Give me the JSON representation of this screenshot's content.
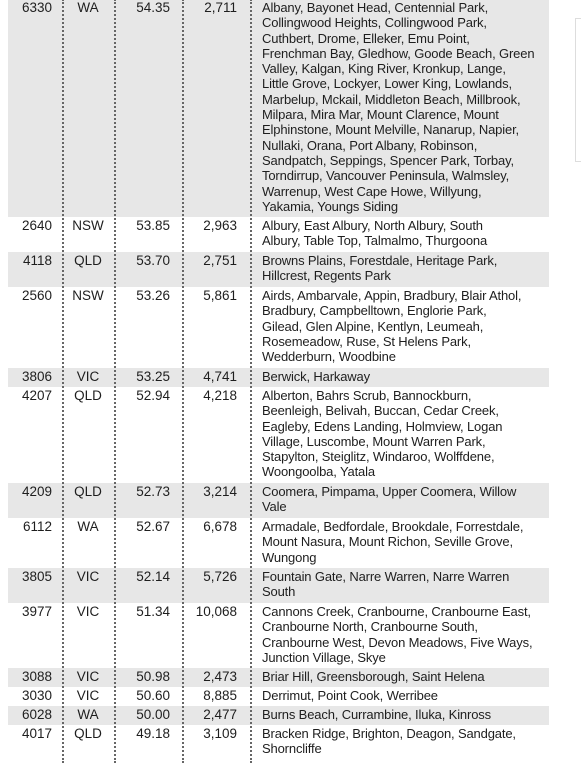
{
  "table": {
    "rows": [
      {
        "postcode": "6330",
        "state": "WA",
        "value": "54.35",
        "population": "2,711",
        "suburbs": [
          "Albany, Bayonet Head, Centennial Park,",
          "Collingwood Heights, Collingwood Park,",
          "Cuthbert, Drome, Elleker, Emu Point,",
          "Frenchman Bay, Gledhow, Goode Beach, Green",
          "Valley, Kalgan, King River, Kronkup, Lange,",
          "Little Grove, Lockyer, Lower King, Lowlands,",
          "Marbelup, Mckail, Middleton Beach, Millbrook,",
          "Milpara, Mira Mar, Mount Clarence, Mount",
          "Elphinstone, Mount Melville, Nanarup, Napier,",
          "Nullaki, Orana, Port Albany, Robinson,",
          "Sandpatch, Seppings, Spencer Park, Torbay,",
          "Torndirrup, Vancouver Peninsula, Walmsley,",
          "Warrenup, West Cape Howe, Willyung,",
          "Yakamia, Youngs Siding"
        ]
      },
      {
        "postcode": "2640",
        "state": "NSW",
        "value": "53.85",
        "population": "2,963",
        "suburbs": [
          "Albury, East Albury, North Albury, South",
          "Albury, Table Top, Talmalmo, Thurgoona"
        ]
      },
      {
        "postcode": "4118",
        "state": "QLD",
        "value": "53.70",
        "population": "2,751",
        "suburbs": [
          "Browns Plains, Forestdale, Heritage Park,",
          "Hillcrest, Regents Park"
        ]
      },
      {
        "postcode": "2560",
        "state": "NSW",
        "value": "53.26",
        "population": "5,861",
        "suburbs": [
          "Airds, Ambarvale, Appin, Bradbury, Blair Athol,",
          "Bradbury, Campbelltown, Englorie Park,",
          "Gilead, Glen Alpine, Kentlyn, Leumeah,",
          "Rosemeadow, Ruse, St Helens Park,",
          "Wedderburn, Woodbine"
        ]
      },
      {
        "postcode": "3806",
        "state": "VIC",
        "value": "53.25",
        "population": "4,741",
        "suburbs": [
          "Berwick, Harkaway"
        ]
      },
      {
        "postcode": "4207",
        "state": "QLD",
        "value": "52.94",
        "population": "4,218",
        "suburbs": [
          "Alberton, Bahrs Scrub, Bannockburn,",
          "Beenleigh, Belivah, Buccan, Cedar Creek,",
          "Eagleby, Edens Landing, Holmview, Logan",
          "Village, Luscombe, Mount Warren Park,",
          "Stapylton, Steiglitz, Windaroo, Wolffdene,",
          "Woongoolba, Yatala"
        ]
      },
      {
        "postcode": "4209",
        "state": "QLD",
        "value": "52.73",
        "population": "3,214",
        "suburbs": [
          "Coomera, Pimpama, Upper Coomera, Willow",
          "Vale"
        ]
      },
      {
        "postcode": "6112",
        "state": "WA",
        "value": "52.67",
        "population": "6,678",
        "suburbs": [
          "Armadale, Bedfordale, Brookdale, Forrestdale,",
          "Mount Nasura, Mount Richon, Seville Grove,",
          "Wungong"
        ]
      },
      {
        "postcode": "3805",
        "state": "VIC",
        "value": "52.14",
        "population": "5,726",
        "suburbs": [
          "Fountain Gate, Narre Warren, Narre Warren",
          "South"
        ]
      },
      {
        "postcode": "3977",
        "state": "VIC",
        "value": "51.34",
        "population": "10,068",
        "suburbs": [
          "Cannons Creek, Cranbourne, Cranbourne East,",
          "Cranbourne North, Cranbourne South,",
          "Cranbourne West, Devon Meadows, Five Ways,",
          "Junction Village, Skye"
        ]
      },
      {
        "postcode": "3088",
        "state": "VIC",
        "value": "50.98",
        "population": "2,473",
        "suburbs": [
          "Briar Hill, Greensborough, Saint Helena"
        ]
      },
      {
        "postcode": "3030",
        "state": "VIC",
        "value": "50.60",
        "population": "8,885",
        "suburbs": [
          "Derrimut, Point Cook, Werribee"
        ]
      },
      {
        "postcode": "6028",
        "state": "WA",
        "value": "50.00",
        "population": "2,477",
        "suburbs": [
          "Burns Beach, Currambine, Iluka, Kinross"
        ]
      },
      {
        "postcode": "4017",
        "state": "QLD",
        "value": "49.18",
        "population": "3,109",
        "suburbs": [
          "Bracken Ridge, Brighton, Deagon, Sandgate,",
          "Shorncliffe"
        ]
      }
    ]
  }
}
